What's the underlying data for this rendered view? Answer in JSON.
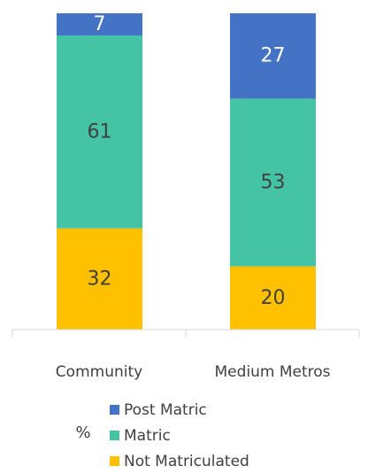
{
  "chart_data": {
    "type": "bar",
    "stacked": true,
    "categories": [
      "Community",
      "Medium Metros"
    ],
    "series": [
      {
        "name": "Not Matriculated",
        "values": [
          32,
          20
        ],
        "color": "#FFC000"
      },
      {
        "name": "Matric",
        "values": [
          61,
          53
        ],
        "color": "#44C4A4"
      },
      {
        "name": "Post Matric",
        "values": [
          7,
          27
        ],
        "color": "#4472C4"
      }
    ],
    "unit": "%",
    "ylim": [
      0,
      100
    ],
    "legend_position": "bottom",
    "grid": false,
    "data_labels": true
  }
}
